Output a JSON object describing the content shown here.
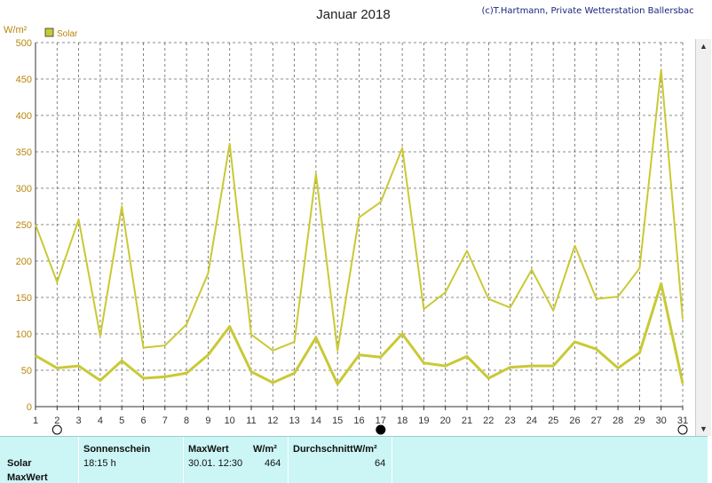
{
  "title": "Januar 2018",
  "credit": "(c)T.Hartmann, Private Wetterstation Ballersbach",
  "unit_label": "W/m²",
  "legend": {
    "label": "Solar",
    "color": "#c9c935"
  },
  "colors": {
    "series": "#c9c935",
    "panel": "#ccf5f5",
    "axis_text": "#b8860b"
  },
  "moon_phases": [
    {
      "day": 2,
      "phase": "full-moon"
    },
    {
      "day": 17,
      "phase": "new-moon"
    },
    {
      "day": 31,
      "phase": "full-moon"
    }
  ],
  "chart_data": {
    "type": "line",
    "title": "Januar 2018",
    "ylabel": "W/m²",
    "x": [
      1,
      2,
      3,
      4,
      5,
      6,
      7,
      8,
      9,
      10,
      11,
      12,
      13,
      14,
      15,
      16,
      17,
      18,
      19,
      20,
      21,
      22,
      23,
      24,
      25,
      26,
      27,
      28,
      29,
      30,
      31
    ],
    "xlim": [
      1,
      31
    ],
    "ylim": [
      0,
      500
    ],
    "yticks": [
      0,
      50,
      100,
      150,
      200,
      250,
      300,
      350,
      400,
      450,
      500
    ],
    "grid": true,
    "legend_position": "top-left",
    "series": [
      {
        "name": "Solar",
        "role": "max",
        "values": [
          250,
          171,
          257,
          97,
          275,
          81,
          84,
          113,
          183,
          361,
          99,
          77,
          89,
          320,
          77,
          260,
          281,
          355,
          134,
          157,
          214,
          148,
          136,
          188,
          132,
          221,
          148,
          151,
          190,
          463,
          120
        ]
      },
      {
        "name": "Solar",
        "role": "mean",
        "values": [
          70,
          53,
          56,
          36,
          63,
          39,
          41,
          46,
          71,
          110,
          48,
          33,
          46,
          95,
          31,
          71,
          68,
          100,
          60,
          56,
          69,
          39,
          54,
          56,
          56,
          89,
          79,
          53,
          74,
          169,
          32
        ]
      }
    ]
  },
  "stats": {
    "row_label_1": "Solar",
    "row_label_2": "MaxWert",
    "col_sunshine_header": "Sonnenschein",
    "col_sunshine_value": "18:15 h",
    "col_max_header": "MaxWert",
    "col_max_unit": "W/m²",
    "col_max_date": "30.01.  12:30",
    "col_max_value": "464",
    "col_avg_header": "DurchschnittW/m²",
    "col_avg_value": "64"
  },
  "scrollbar": {
    "up_icon": "▲",
    "down_icon": "▼"
  }
}
